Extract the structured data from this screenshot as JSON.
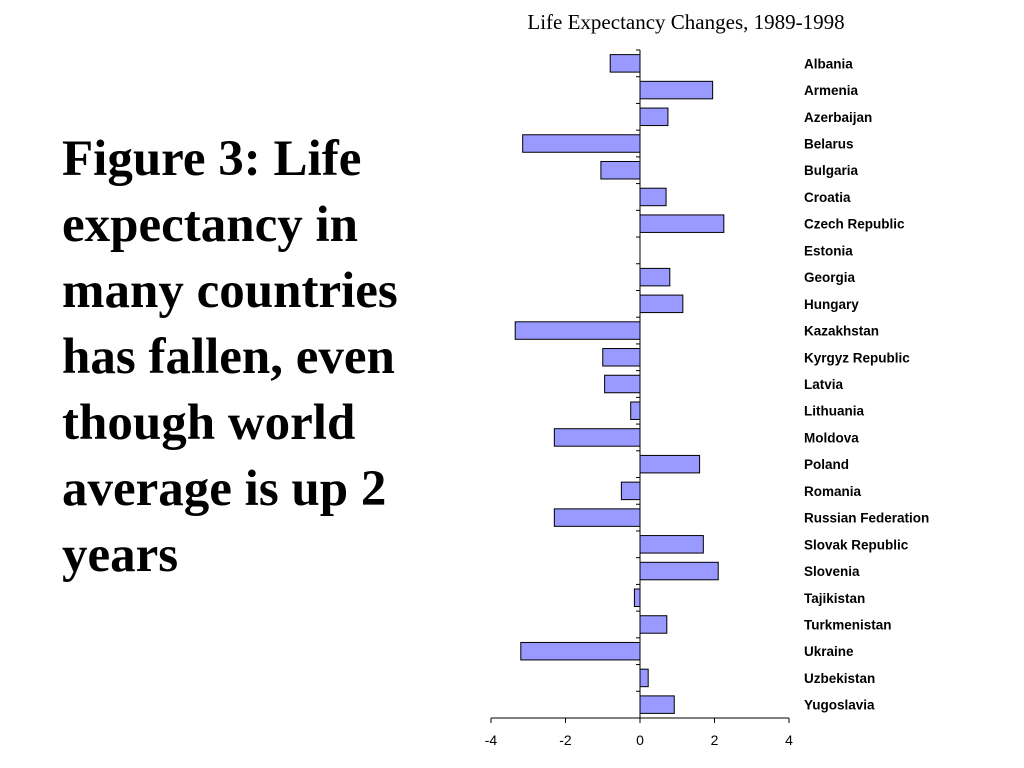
{
  "slide": {
    "caption": "Figure 3: Life expectancy in many countries has fallen, even though world average is up 2 years"
  },
  "colors": {
    "bar_fill": "#9999ff",
    "bar_stroke": "#000000",
    "axis": "#000000"
  },
  "chart_data": {
    "type": "bar",
    "orientation": "horizontal",
    "title": "Life Expectancy Changes, 1989-1998",
    "xlabel": "",
    "ylabel": "",
    "xlim": [
      -4,
      4
    ],
    "xticks": [
      "-4",
      "-2",
      "0",
      "2",
      "4"
    ],
    "grid": false,
    "legend": "none",
    "categories": [
      "Albania",
      "Armenia",
      "Azerbaijan",
      "Belarus",
      "Bulgaria",
      "Croatia",
      "Czech Republic",
      "Estonia",
      "Georgia",
      "Hungary",
      "Kazakhstan",
      "Kyrgyz Republic",
      "Latvia",
      "Lithuania",
      "Moldova",
      "Poland",
      "Romania",
      "Russian Federation",
      "Slovak Republic",
      "Slovenia",
      "Tajikistan",
      "Turkmenistan",
      "Ukraine",
      "Uzbekistan",
      "Yugoslavia"
    ],
    "values": [
      -0.8,
      1.95,
      0.75,
      -3.15,
      -1.05,
      0.7,
      2.25,
      0.0,
      0.8,
      1.15,
      -3.35,
      -1.0,
      -0.95,
      -0.25,
      -2.3,
      1.6,
      -0.5,
      -2.3,
      1.7,
      2.1,
      -0.15,
      0.72,
      -3.2,
      0.22,
      0.92
    ]
  }
}
